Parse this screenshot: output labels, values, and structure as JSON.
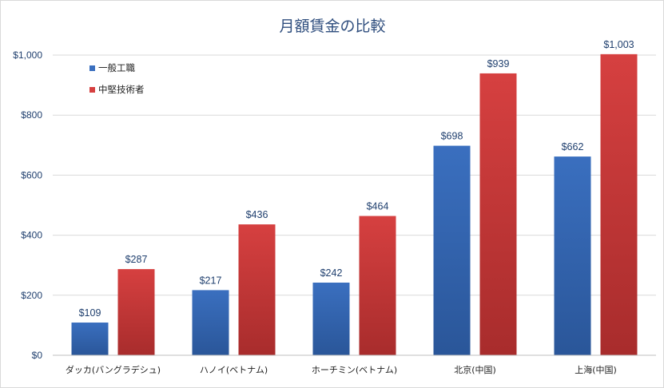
{
  "chart_data": {
    "type": "bar",
    "title": "月額賃金の比較",
    "categories": [
      "ダッカ(バングラデシュ)",
      "ハノイ(ベトナム)",
      "ホーチミン(ベトナム)",
      "北京(中国)",
      "上海(中国)"
    ],
    "series": [
      {
        "name": "一般工職",
        "values": [
          109,
          217,
          242,
          698,
          662
        ],
        "labels": [
          "$109",
          "$217",
          "$242",
          "$698",
          "$662"
        ],
        "color": "#3a6fbf",
        "color_dark": "#2a5699"
      },
      {
        "name": "中堅技術者",
        "values": [
          287,
          436,
          464,
          939,
          1003
        ],
        "labels": [
          "$287",
          "$436",
          "$464",
          "$939",
          "$1,003"
        ],
        "color": "#d64040",
        "color_dark": "#a82c2c"
      }
    ],
    "ylim": [
      0,
      1000
    ],
    "yticks": [
      0,
      200,
      400,
      600,
      800,
      1000
    ],
    "ytick_labels": [
      "$0",
      "$200",
      "$400",
      "$600",
      "$800",
      "$1,000"
    ],
    "grid": true,
    "legend_position": "top-left"
  }
}
